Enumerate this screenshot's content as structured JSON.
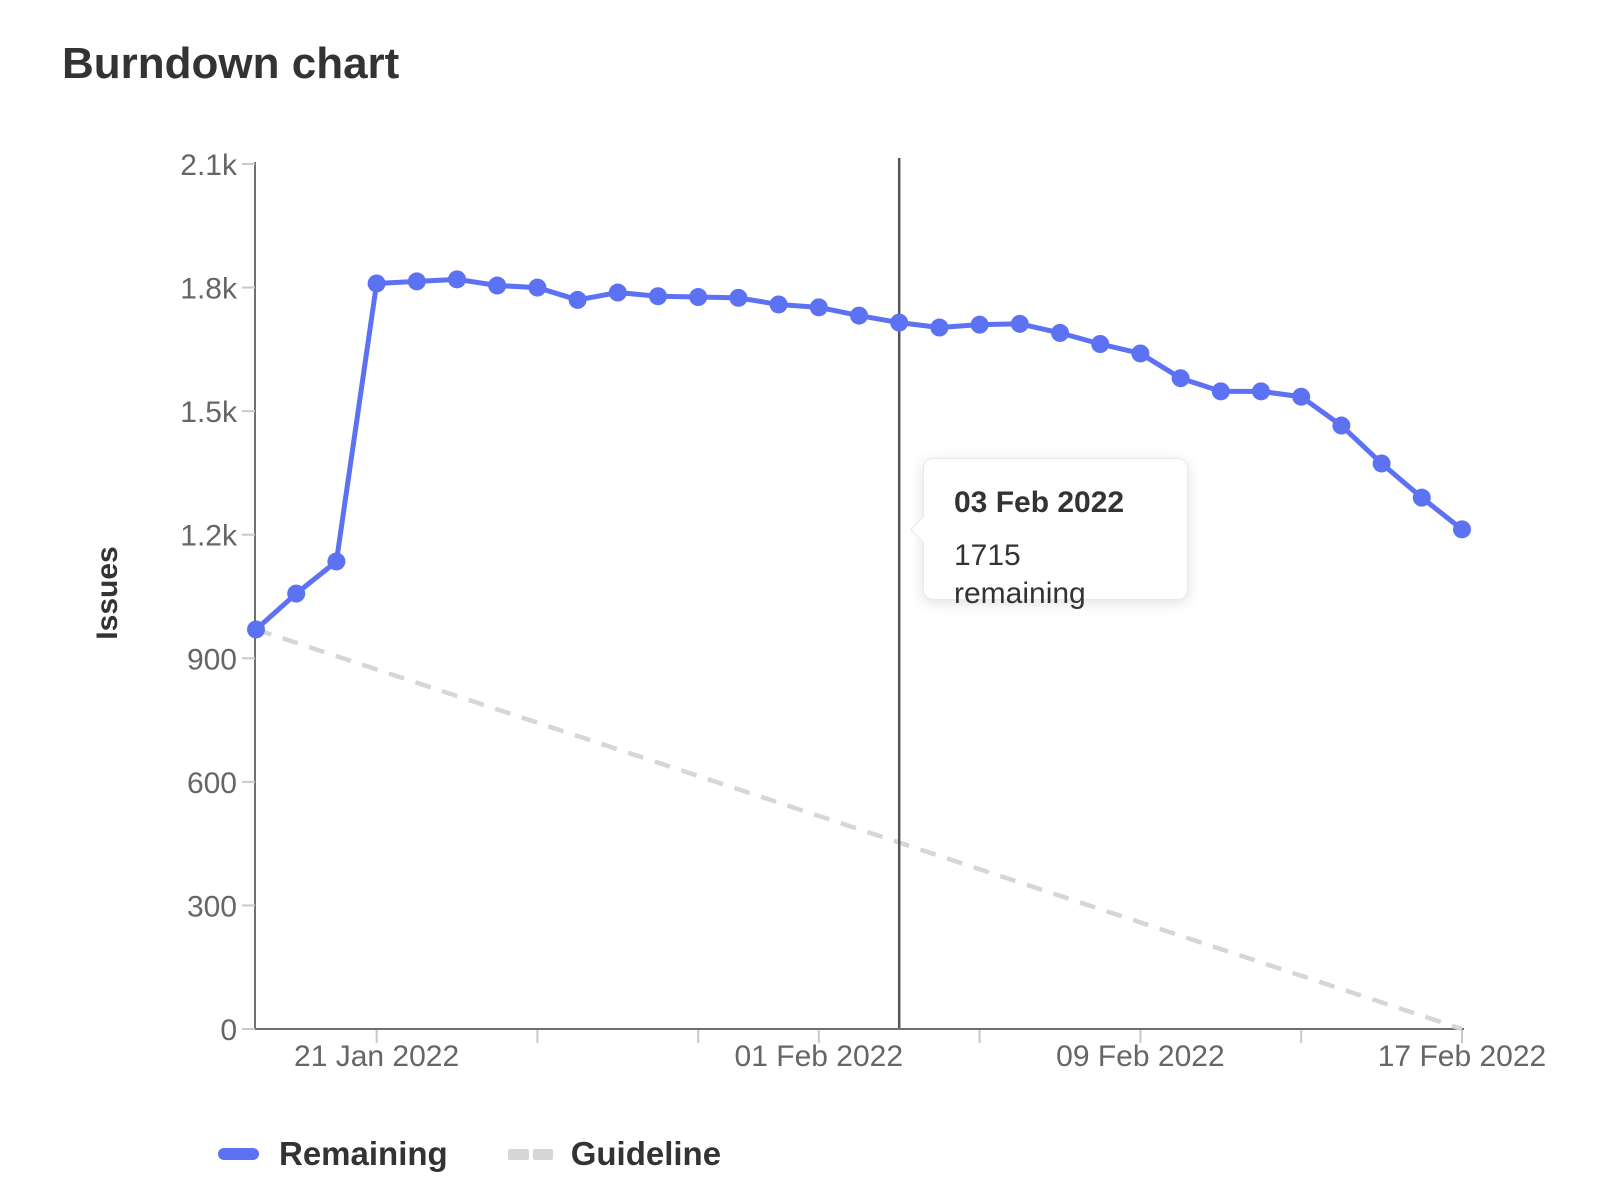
{
  "title": "Burndown chart",
  "colors": {
    "remaining": "#5c72f2",
    "guideline": "#d6d6d6",
    "axis": "#6d7076",
    "tick": "#c9c9c9",
    "text_muted": "#666666",
    "text_dark": "#333333",
    "hover_line": "#55565a",
    "tooltip_border": "#e9e9e9"
  },
  "legend": [
    {
      "label": "Remaining",
      "style": "solid"
    },
    {
      "label": "Guideline",
      "style": "dashed"
    }
  ],
  "chart_data": {
    "type": "line",
    "title": "Burndown chart",
    "xlabel": "",
    "ylabel": "Issues",
    "ylim": [
      0,
      2100
    ],
    "grid": false,
    "legend_position": "bottom-left",
    "x": [
      "18 Jan 2022",
      "19 Jan 2022",
      "20 Jan 2022",
      "21 Jan 2022",
      "22 Jan 2022",
      "23 Jan 2022",
      "24 Jan 2022",
      "25 Jan 2022",
      "26 Jan 2022",
      "27 Jan 2022",
      "28 Jan 2022",
      "29 Jan 2022",
      "30 Jan 2022",
      "31 Jan 2022",
      "01 Feb 2022",
      "02 Feb 2022",
      "03 Feb 2022",
      "04 Feb 2022",
      "05 Feb 2022",
      "06 Feb 2022",
      "07 Feb 2022",
      "08 Feb 2022",
      "09 Feb 2022",
      "10 Feb 2022",
      "11 Feb 2022",
      "12 Feb 2022",
      "13 Feb 2022",
      "14 Feb 2022",
      "15 Feb 2022",
      "16 Feb 2022",
      "17 Feb 2022"
    ],
    "series": [
      {
        "name": "Remaining",
        "style": "solid",
        "day_indices": [
          0,
          1,
          2,
          3,
          4,
          5,
          6,
          7,
          8,
          9,
          10,
          11,
          12,
          13,
          14,
          15,
          16,
          17,
          18,
          19,
          20,
          21,
          22,
          23,
          24,
          25,
          26,
          27,
          28,
          29,
          30
        ],
        "values": [
          970,
          1057,
          1135,
          1810,
          1815,
          1820,
          1805,
          1800,
          1770,
          1788,
          1779,
          1777,
          1775,
          1759,
          1752,
          1732,
          1715,
          1703,
          1710,
          1712,
          1690,
          1663,
          1640,
          1580,
          1548,
          1548,
          1535,
          1465,
          1373,
          1290,
          1213
        ]
      },
      {
        "name": "Guideline",
        "style": "dashed",
        "day_indices": [
          0,
          30
        ],
        "values": [
          970,
          0
        ]
      }
    ],
    "y_axis": {
      "label": "Issues",
      "tick_values": [
        0,
        300,
        600,
        900,
        1200,
        1500,
        1800,
        2100
      ],
      "tick_labels": [
        "0",
        "300",
        "600",
        "900",
        "1.2k",
        "1.5k",
        "1.8k",
        "2.1k"
      ]
    },
    "x_axis": {
      "tick_day_indices": [
        3,
        7,
        11,
        14,
        18,
        22,
        26,
        30
      ],
      "labels": [
        {
          "text": "21 Jan 2022",
          "day_index": 3
        },
        {
          "text": "01 Feb 2022",
          "day_index": 14
        },
        {
          "text": "09 Feb 2022",
          "day_index": 22
        },
        {
          "text": "17 Feb 2022",
          "day_index": 30
        }
      ]
    },
    "tooltip": {
      "title": "03 Feb 2022",
      "body": "1715 remaining",
      "value": 1715,
      "day_index": 16
    }
  }
}
